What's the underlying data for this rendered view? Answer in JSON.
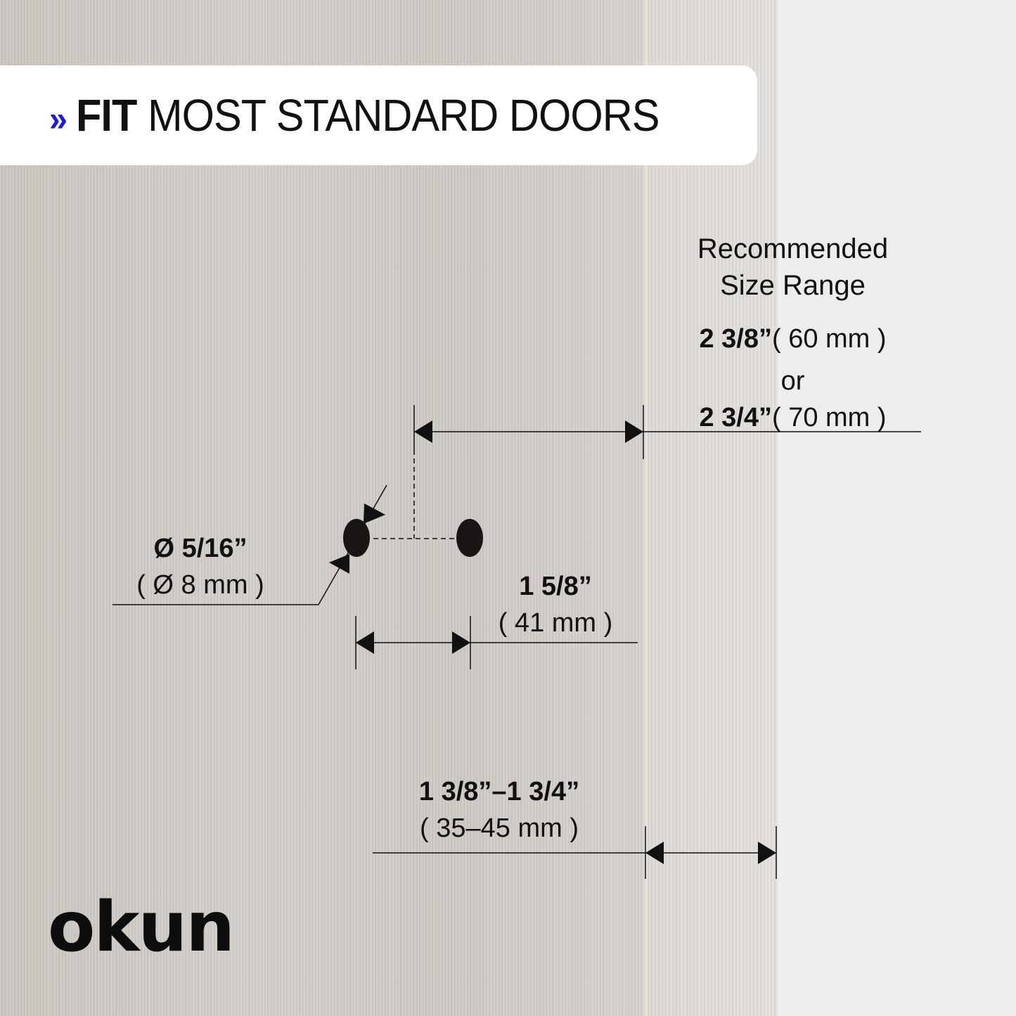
{
  "banner": {
    "icon": "double-chevron-right-icon",
    "accent_color": "#1a1ae8",
    "bold": "FIT",
    "rest": "MOST STANDARD DOORS"
  },
  "backset": {
    "heading_line1": "Recommended",
    "heading_line2": "Size Range",
    "opt1_in": "2 3/8”",
    "opt1_mm": "( 60 mm )",
    "or": "or",
    "opt2_in": "2 3/4”",
    "opt2_mm": "( 70 mm )"
  },
  "hole_diameter": {
    "inch": "Ø 5/16”",
    "mm": "( Ø 8 mm )"
  },
  "hole_spacing": {
    "inch": "1 5/8”",
    "mm": "( 41 mm )"
  },
  "door_thickness": {
    "inch": "1 3/8”–1 3/4”",
    "mm": "( 35–45 mm )"
  },
  "brand": {
    "logo": "OKUN"
  }
}
